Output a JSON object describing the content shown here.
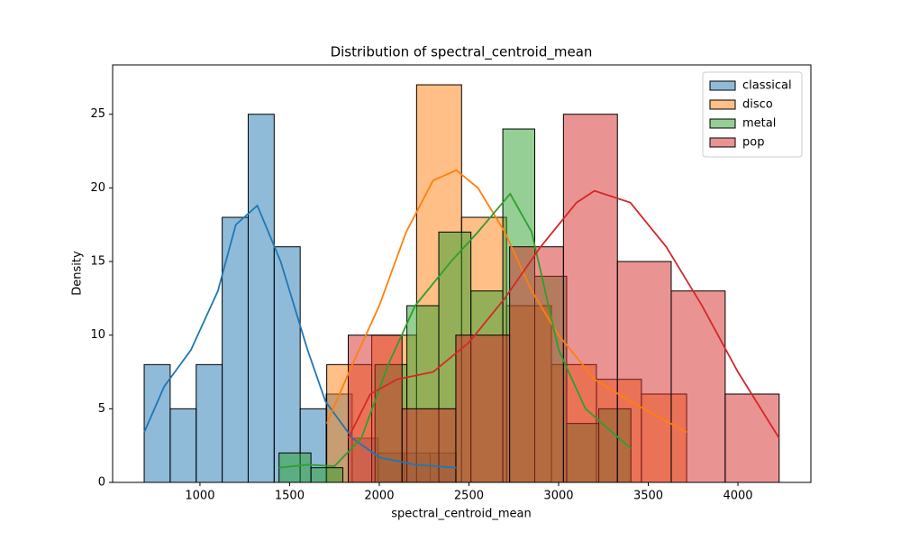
{
  "chart_data": {
    "type": "histogram",
    "title": "Distribution of spectral_centroid_mean",
    "x_label": "spectral_centroid_mean",
    "y_label": "Density",
    "xlim": [
      513,
      4407
    ],
    "ylim": [
      0,
      28.35
    ],
    "xticks": [
      1000,
      1500,
      2000,
      2500,
      3000,
      3500,
      4000
    ],
    "yticks": [
      0,
      5,
      10,
      15,
      20,
      25
    ],
    "legend": "upper right",
    "series": [
      {
        "name": "classical",
        "color": "#1f77b4",
        "bins": [
          689,
          834,
          979,
          1124,
          1269,
          1414,
          1559,
          1704,
          1849,
          1994,
          2139,
          2284,
          2429
        ],
        "values": [
          8,
          5,
          8,
          18,
          25,
          16,
          5,
          6,
          3,
          2,
          2,
          2
        ],
        "kde": {
          "x": [
            689,
            800,
            950,
            1100,
            1200,
            1320,
            1450,
            1600,
            1700,
            1850,
            2000,
            2200,
            2429
          ],
          "values": [
            3.4,
            6.5,
            9,
            13,
            17.5,
            18.8,
            15,
            9,
            5.5,
            3,
            1.7,
            1.2,
            1.0
          ]
        }
      },
      {
        "name": "disco",
        "color": "#ff7f0e",
        "bins": [
          1707,
          1958,
          2208,
          2459,
          2710,
          2960,
          3211,
          3462,
          3714
        ],
        "values": [
          8,
          10,
          27,
          18,
          12,
          8,
          7,
          6
        ],
        "kde": {
          "x": [
            1707,
            1850,
            2000,
            2150,
            2300,
            2430,
            2550,
            2700,
            2850,
            3000,
            3200,
            3400,
            3714
          ],
          "values": [
            4,
            8,
            12,
            17,
            20.5,
            21.2,
            20,
            17,
            13,
            10,
            7,
            5.5,
            3.4
          ]
        }
      },
      {
        "name": "metal",
        "color": "#2ca02c",
        "bins": [
          1441,
          1619,
          1797,
          1976,
          2154,
          2332,
          2511,
          2689,
          2867,
          3045,
          3224,
          3403
        ],
        "values": [
          2,
          1,
          0,
          8,
          12,
          17,
          13,
          24,
          14,
          4,
          5
        ],
        "kde": {
          "x": [
            1441,
            1600,
            1750,
            1900,
            2050,
            2200,
            2400,
            2550,
            2730,
            2850,
            3000,
            3150,
            3403
          ],
          "values": [
            1,
            1.2,
            1.1,
            3,
            8,
            12,
            15,
            17,
            19.6,
            17,
            9,
            5,
            2.3
          ]
        }
      },
      {
        "name": "pop",
        "color": "#d62728",
        "bins": [
          1827,
          2127,
          2427,
          2727,
          3027,
          3328,
          3628,
          3929,
          4230
        ],
        "values": [
          10,
          5,
          10,
          16,
          25,
          15,
          13,
          6
        ],
        "kde": {
          "x": [
            1827,
            1950,
            2100,
            2300,
            2500,
            2700,
            2900,
            3100,
            3200,
            3400,
            3600,
            3800,
            4000,
            4230
          ],
          "values": [
            3,
            6,
            7,
            7.5,
            9.5,
            12.5,
            16,
            19,
            19.8,
            19,
            16,
            12,
            7.5,
            3
          ]
        }
      }
    ]
  }
}
